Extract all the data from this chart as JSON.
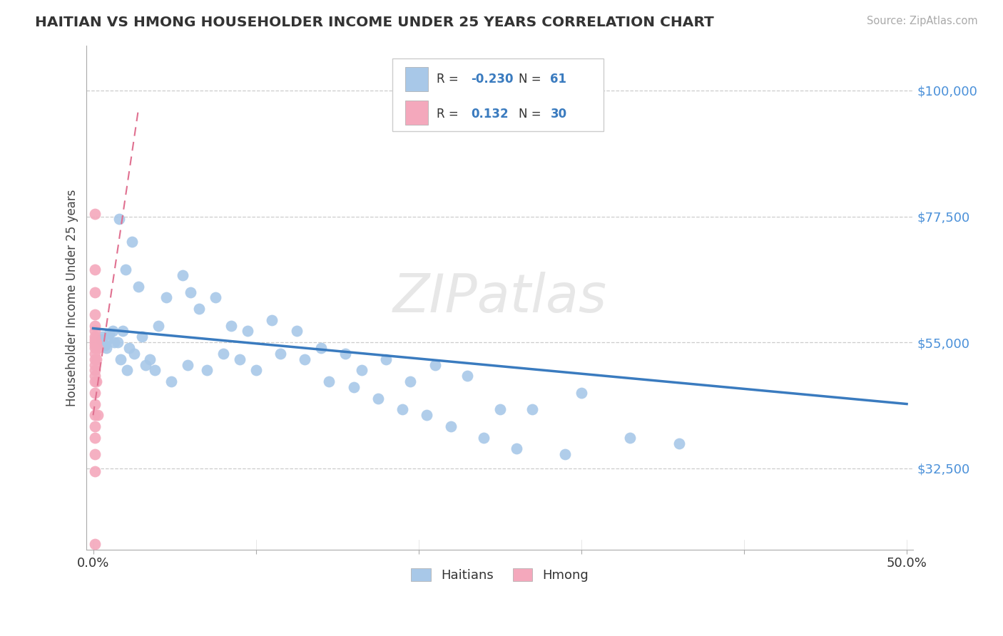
{
  "title": "HAITIAN VS HMONG HOUSEHOLDER INCOME UNDER 25 YEARS CORRELATION CHART",
  "source": "Source: ZipAtlas.com",
  "ylabel": "Householder Income Under 25 years",
  "ytick_labels": [
    "$32,500",
    "$55,000",
    "$77,500",
    "$100,000"
  ],
  "ytick_values": [
    32500,
    55000,
    77500,
    100000
  ],
  "ylim": [
    18000,
    108000
  ],
  "xlim": [
    -0.004,
    0.504
  ],
  "legend_haitian_R": "-0.230",
  "legend_haitian_N": "61",
  "legend_hmong_R": "0.132",
  "legend_hmong_N": "30",
  "haitian_color": "#a8c8e8",
  "hmong_color": "#f4a8bc",
  "trendline_haitian_color": "#3a7bbf",
  "trendline_hmong_color": "#e07090",
  "watermark": "ZIPatlas",
  "haitian_x": [
    0.006,
    0.012,
    0.016,
    0.02,
    0.024,
    0.028,
    0.005,
    0.008,
    0.01,
    0.015,
    0.018,
    0.022,
    0.03,
    0.035,
    0.04,
    0.045,
    0.055,
    0.06,
    0.065,
    0.075,
    0.085,
    0.095,
    0.11,
    0.125,
    0.14,
    0.155,
    0.165,
    0.18,
    0.195,
    0.21,
    0.23,
    0.25,
    0.27,
    0.3,
    0.33,
    0.36,
    0.007,
    0.009,
    0.013,
    0.017,
    0.021,
    0.025,
    0.032,
    0.038,
    0.048,
    0.058,
    0.07,
    0.08,
    0.09,
    0.1,
    0.115,
    0.13,
    0.145,
    0.16,
    0.175,
    0.19,
    0.205,
    0.22,
    0.24,
    0.26,
    0.29
  ],
  "haitian_y": [
    56000,
    57000,
    77000,
    68000,
    73000,
    65000,
    55500,
    54000,
    56500,
    55000,
    57000,
    54000,
    56000,
    52000,
    58000,
    63000,
    67000,
    64000,
    61000,
    63000,
    58000,
    57000,
    59000,
    57000,
    54000,
    53000,
    50000,
    52000,
    48000,
    51000,
    49000,
    43000,
    43000,
    46000,
    38000,
    37000,
    54500,
    55500,
    55000,
    52000,
    50000,
    53000,
    51000,
    50000,
    48000,
    51000,
    50000,
    53000,
    52000,
    50000,
    53000,
    52000,
    48000,
    47000,
    45000,
    43000,
    42000,
    40000,
    38000,
    36000,
    35000
  ],
  "hmong_x": [
    0.001,
    0.001,
    0.001,
    0.001,
    0.001,
    0.001,
    0.001,
    0.001,
    0.001,
    0.001,
    0.001,
    0.001,
    0.001,
    0.001,
    0.001,
    0.001,
    0.001,
    0.001,
    0.001,
    0.001,
    0.001,
    0.001,
    0.001,
    0.001,
    0.001,
    0.002,
    0.002,
    0.002,
    0.003,
    0.003
  ],
  "hmong_y": [
    78000,
    68000,
    64000,
    60000,
    58000,
    57000,
    56000,
    55500,
    55000,
    54500,
    54000,
    53000,
    52000,
    51000,
    50000,
    49000,
    48000,
    46000,
    44000,
    42000,
    40000,
    38000,
    35000,
    32000,
    19000,
    55000,
    52000,
    48000,
    54000,
    42000
  ]
}
